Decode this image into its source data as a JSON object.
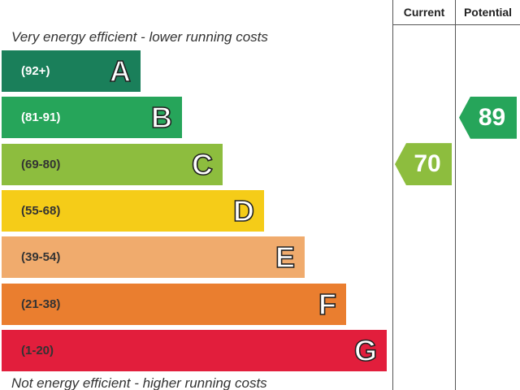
{
  "chart_data": {
    "type": "bar",
    "headers": {
      "current": "Current",
      "potential": "Potential"
    },
    "top_caption": "Very energy efficient - lower running costs",
    "bottom_caption": "Not energy efficient - higher running costs",
    "bands": [
      {
        "letter": "A",
        "range": "(92+)",
        "color": "#1a7f5a",
        "text_color": "#ffffff"
      },
      {
        "letter": "B",
        "range": "(81-91)",
        "color": "#26a55a",
        "text_color": "#ffffff"
      },
      {
        "letter": "C",
        "range": "(69-80)",
        "color": "#8dbd3e",
        "text_color": "#333333"
      },
      {
        "letter": "D",
        "range": "(55-68)",
        "color": "#f5cc18",
        "text_color": "#333333"
      },
      {
        "letter": "E",
        "range": "(39-54)",
        "color": "#f0ab6d",
        "text_color": "#333333"
      },
      {
        "letter": "F",
        "range": "(21-38)",
        "color": "#ea7e2f",
        "text_color": "#333333"
      },
      {
        "letter": "G",
        "range": "(1-20)",
        "color": "#e21e3c",
        "text_color": "#333333"
      }
    ],
    "current": {
      "value": 70,
      "band": "C",
      "color": "#8dbd3e"
    },
    "potential": {
      "value": 89,
      "band": "B",
      "color": "#26a55a"
    }
  }
}
